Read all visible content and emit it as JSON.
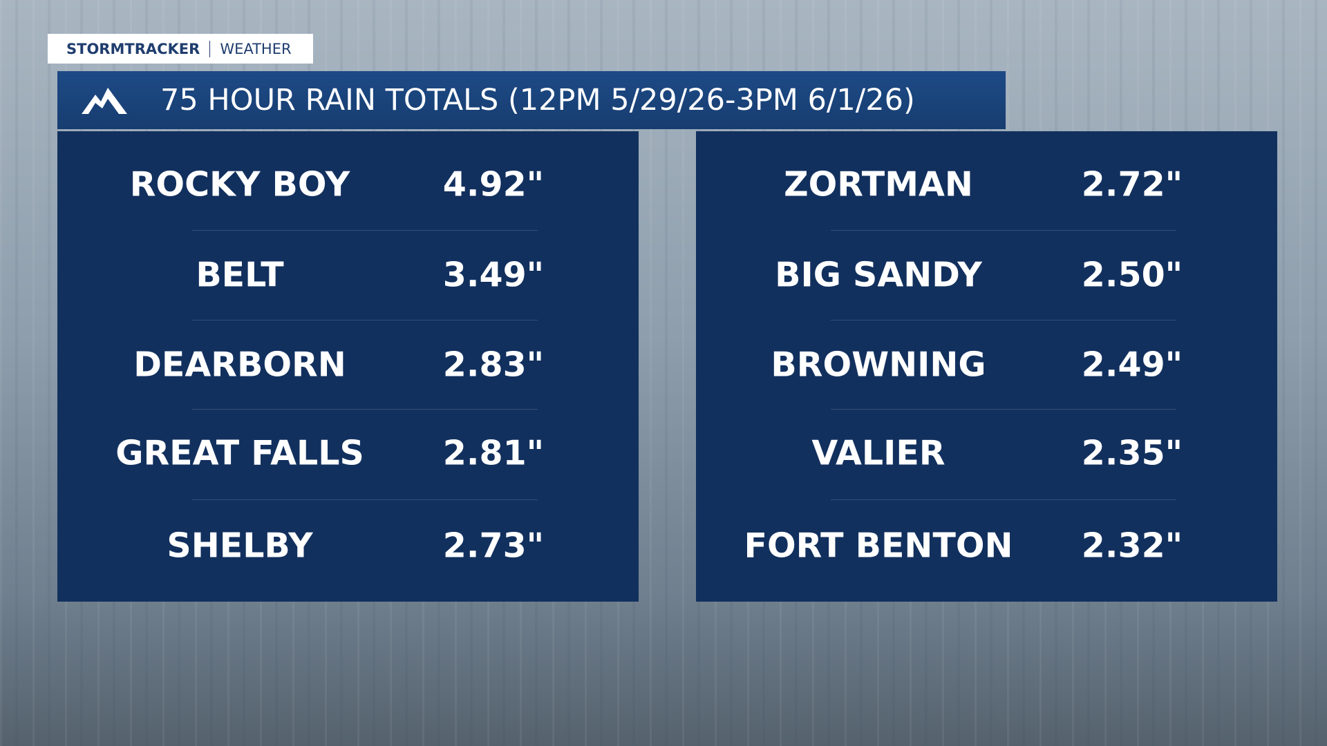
{
  "brand": {
    "name": "STORMTRACKER",
    "section": "WEATHER"
  },
  "title": "75 HOUR RAIN TOTALS (12PM 5/29/26-3PM 6/1/26)",
  "tables": [
    {
      "rows": [
        [
          "ROCKY BOY",
          "4.92\""
        ],
        [
          "BELT",
          "3.49\""
        ],
        [
          "DEARBORN",
          "2.83\""
        ],
        [
          "GREAT FALLS",
          "2.81\""
        ],
        [
          "SHELBY",
          "2.73\""
        ]
      ]
    },
    {
      "rows": [
        [
          "ZORTMAN",
          "2.72\""
        ],
        [
          "BIG SANDY",
          "2.50\""
        ],
        [
          "BROWNING",
          "2.49\""
        ],
        [
          "VALIER",
          "2.35\""
        ],
        [
          "FORT BENTON",
          "2.32\""
        ]
      ]
    }
  ]
}
